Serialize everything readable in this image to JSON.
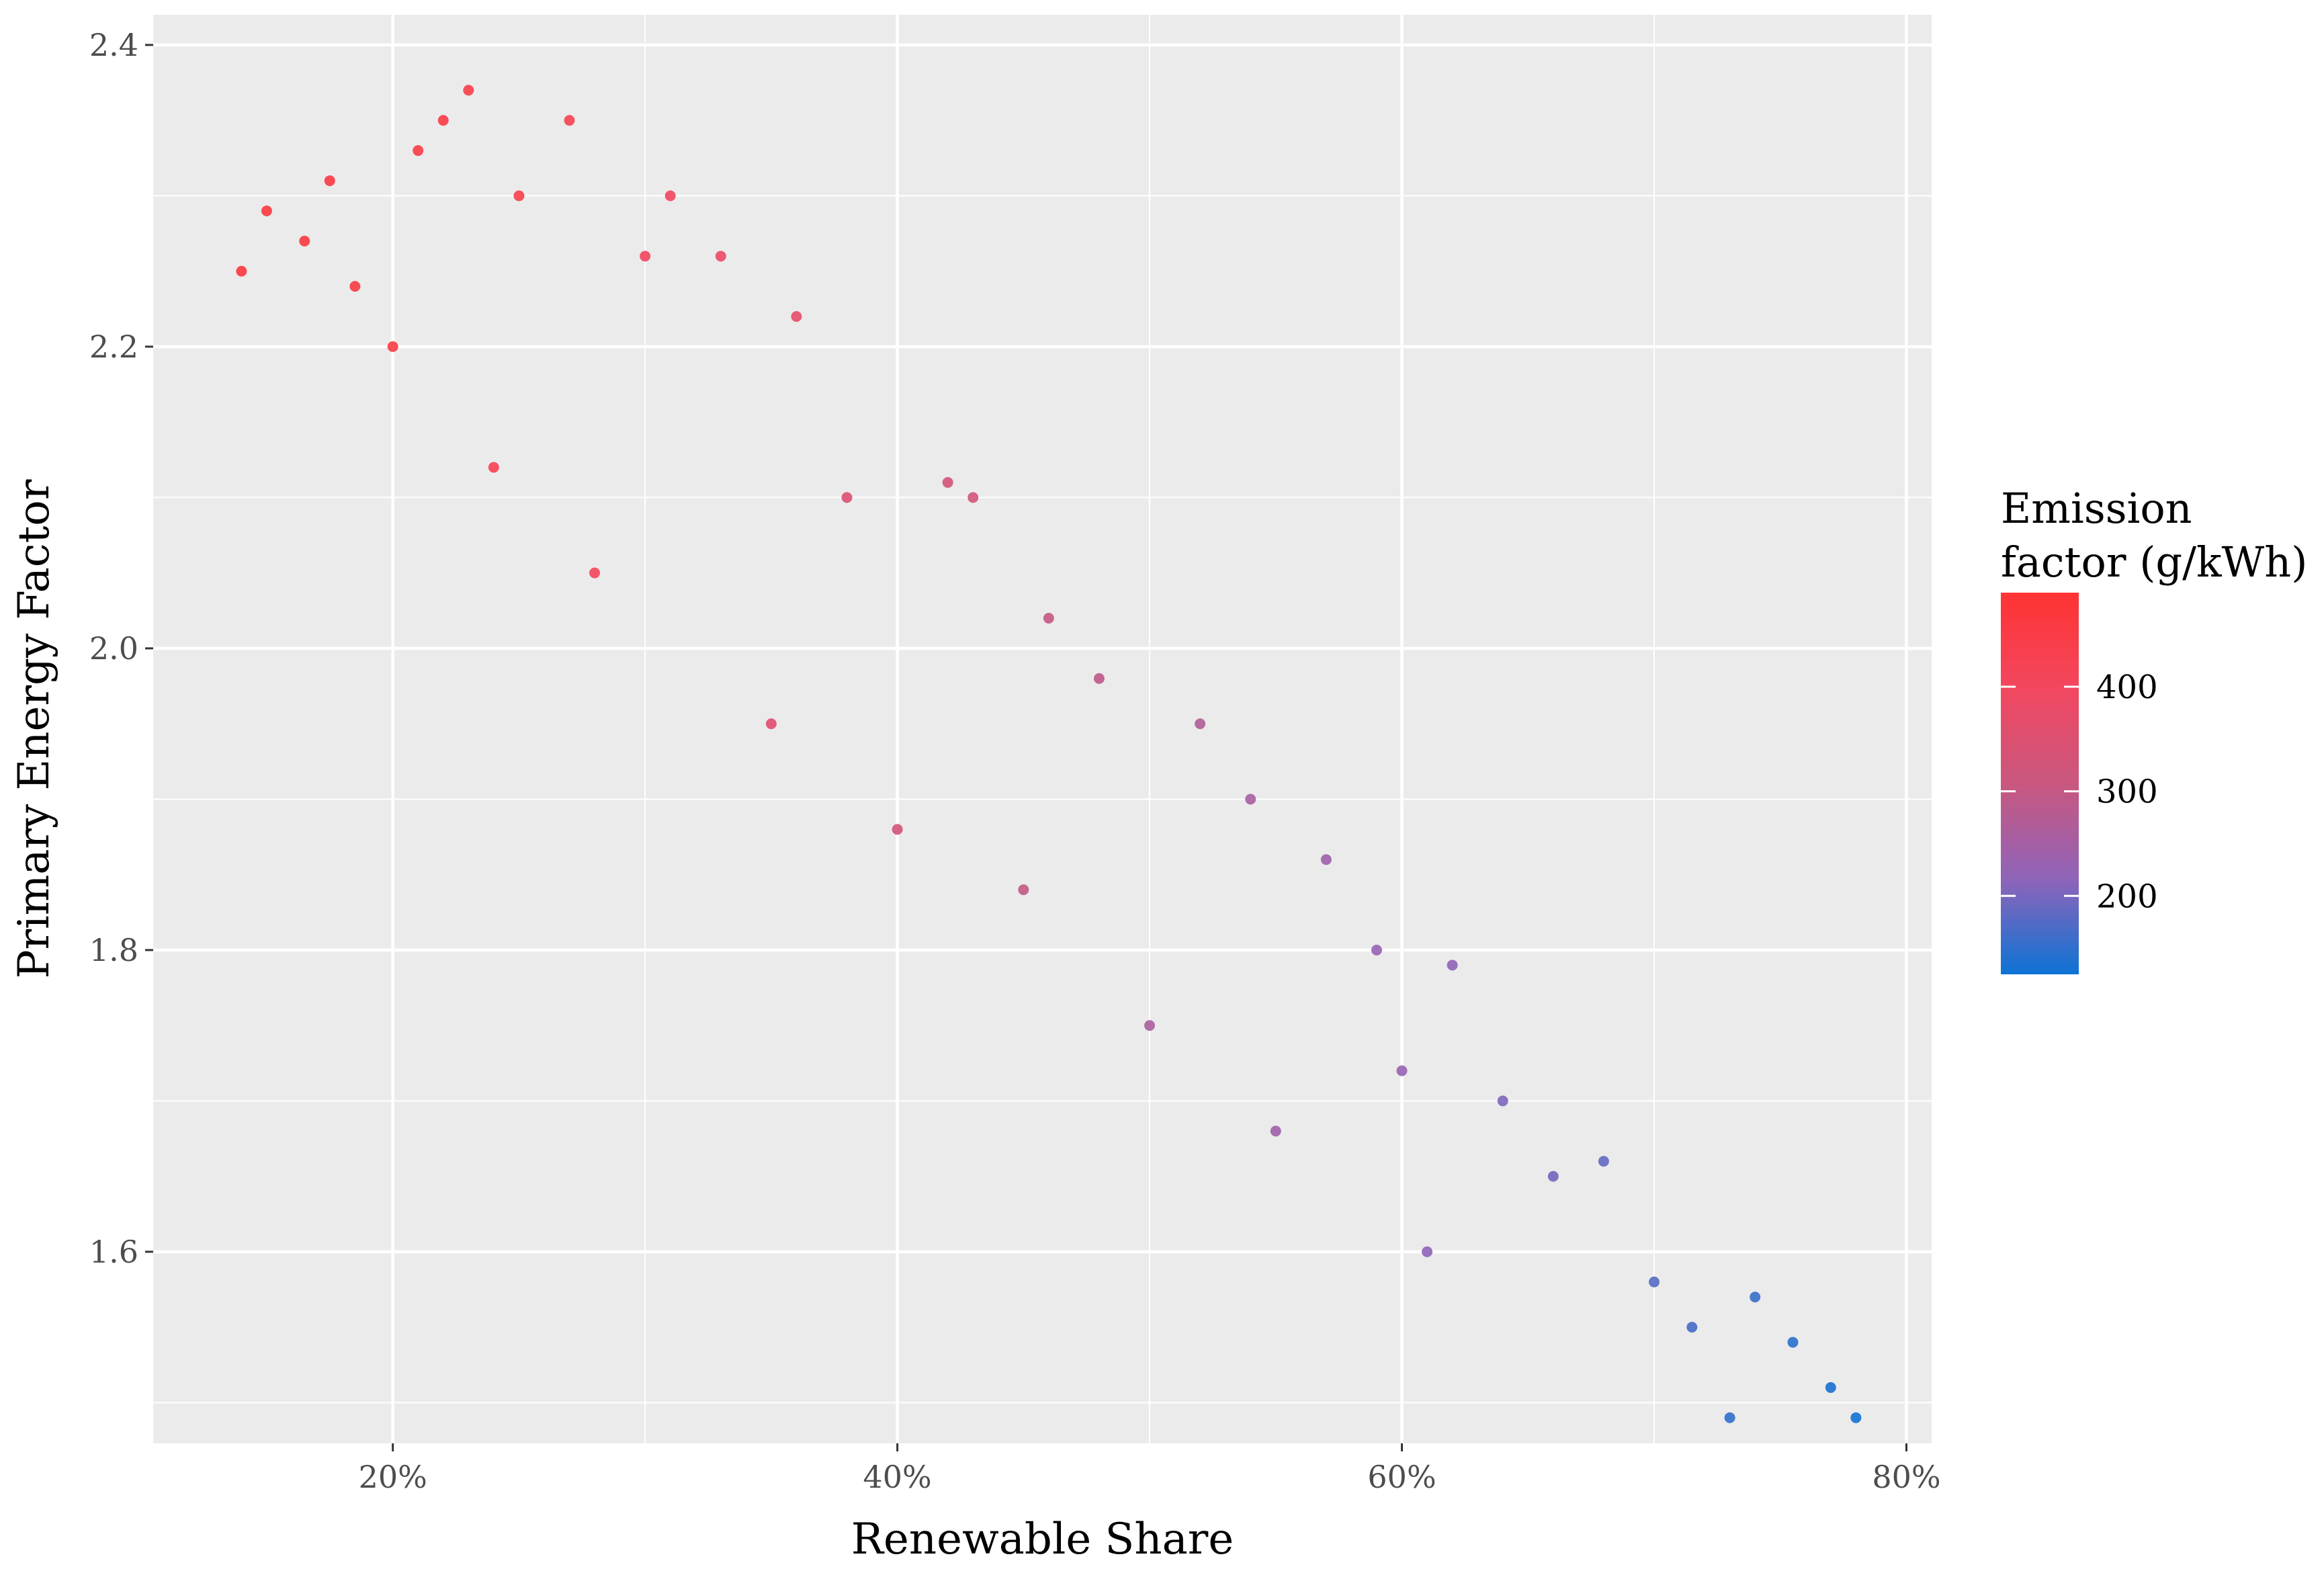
{
  "chart_data": {
    "type": "scatter",
    "xlabel": "Renewable Share",
    "ylabel": "Primary Energy Factor",
    "xlim": [
      0.105,
      0.81
    ],
    "ylim": [
      1.473,
      2.42
    ],
    "x_ticks": [
      0.2,
      0.4,
      0.6,
      0.8
    ],
    "x_tick_labels": [
      "20%",
      "40%",
      "60%",
      "80%"
    ],
    "y_ticks": [
      1.6,
      1.8,
      2.0,
      2.2,
      2.4
    ],
    "y_tick_labels": [
      "1.6",
      "1.8",
      "2.0",
      "2.2",
      "2.4"
    ],
    "grid": true,
    "legend": {
      "title_lines": [
        "Emission",
        "factor (g/kWh)"
      ],
      "position": "right",
      "range": [
        125,
        490
      ],
      "ticks": [
        200,
        300,
        400
      ],
      "tick_labels": [
        "200",
        "300",
        "400"
      ],
      "colors": [
        "#0c73d4",
        "#8f64b9",
        "#c9577f",
        "#f2475f",
        "#ff3333"
      ]
    },
    "series": [
      {
        "color_by": "Emission factor (g/kWh)",
        "points": [
          [
            0.14,
            2.25,
            470
          ],
          [
            0.15,
            2.29,
            468
          ],
          [
            0.165,
            2.27,
            465
          ],
          [
            0.175,
            2.31,
            462
          ],
          [
            0.185,
            2.24,
            460
          ],
          [
            0.2,
            2.2,
            455
          ],
          [
            0.21,
            2.33,
            450
          ],
          [
            0.22,
            2.35,
            448
          ],
          [
            0.23,
            2.37,
            445
          ],
          [
            0.24,
            2.12,
            430
          ],
          [
            0.25,
            2.3,
            435
          ],
          [
            0.27,
            2.35,
            428
          ],
          [
            0.28,
            2.05,
            410
          ],
          [
            0.3,
            2.26,
            405
          ],
          [
            0.31,
            2.3,
            400
          ],
          [
            0.33,
            2.26,
            385
          ],
          [
            0.35,
            1.95,
            360
          ],
          [
            0.36,
            2.22,
            370
          ],
          [
            0.38,
            2.1,
            350
          ],
          [
            0.4,
            1.88,
            330
          ],
          [
            0.42,
            2.11,
            330
          ],
          [
            0.43,
            2.1,
            325
          ],
          [
            0.45,
            1.84,
            300
          ],
          [
            0.46,
            2.02,
            300
          ],
          [
            0.48,
            1.98,
            290
          ],
          [
            0.5,
            1.75,
            260
          ],
          [
            0.52,
            1.95,
            270
          ],
          [
            0.54,
            1.9,
            255
          ],
          [
            0.55,
            1.68,
            240
          ],
          [
            0.57,
            1.86,
            240
          ],
          [
            0.59,
            1.8,
            225
          ],
          [
            0.6,
            1.72,
            225
          ],
          [
            0.61,
            1.6,
            215
          ],
          [
            0.62,
            1.79,
            220
          ],
          [
            0.64,
            1.7,
            205
          ],
          [
            0.66,
            1.65,
            195
          ],
          [
            0.68,
            1.66,
            185
          ],
          [
            0.7,
            1.58,
            175
          ],
          [
            0.715,
            1.55,
            165
          ],
          [
            0.73,
            1.49,
            150
          ],
          [
            0.74,
            1.57,
            155
          ],
          [
            0.755,
            1.54,
            145
          ],
          [
            0.77,
            1.51,
            135
          ],
          [
            0.78,
            1.49,
            128
          ]
        ]
      }
    ]
  }
}
